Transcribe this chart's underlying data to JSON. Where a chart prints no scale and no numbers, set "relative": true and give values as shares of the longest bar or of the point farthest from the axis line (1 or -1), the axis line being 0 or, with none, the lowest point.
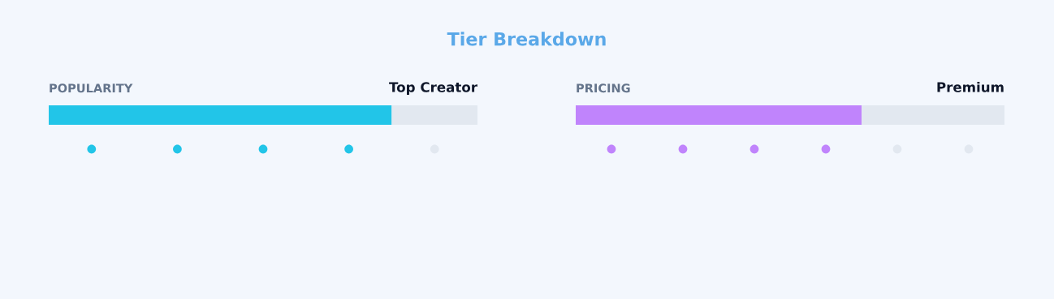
{
  "chart_data": [
    {
      "type": "other",
      "title": "Tier Breakdown"
    },
    {
      "type": "bar",
      "orientation": "horizontal",
      "stacked": true,
      "relative": true,
      "title": "POPULARITY",
      "subtitle": "Top Creator",
      "categories": [
        null
      ],
      "series": [
        {
          "color": "#22c5e8",
          "values": [
            0.8
          ]
        },
        {
          "color": "#e2e8f0",
          "values": [
            0.2
          ]
        }
      ]
    },
    {
      "type": "bar",
      "orientation": "horizontal",
      "stacked": true,
      "relative": true,
      "title": "PRICING",
      "subtitle": "Premium",
      "categories": [
        null
      ],
      "series": [
        {
          "color": "#c084fc",
          "values": [
            0.667
          ]
        },
        {
          "color": "#e2e8f0",
          "values": [
            0.333
          ]
        }
      ]
    }
  ]
}
